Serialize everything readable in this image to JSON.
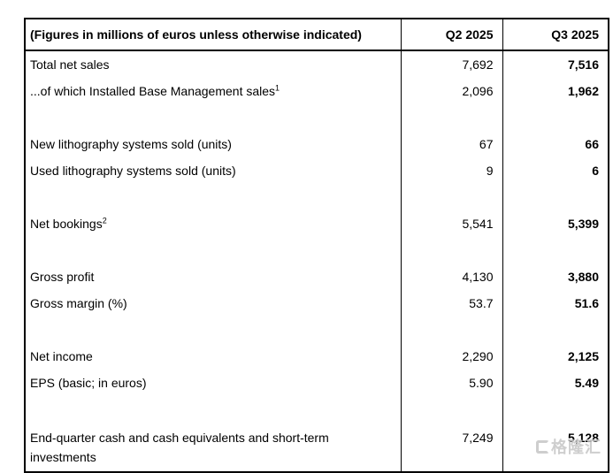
{
  "table": {
    "header": {
      "label": "(Figures in millions of euros unless otherwise indicated)",
      "q2": "Q2 2025",
      "q3": "Q3 2025"
    },
    "rows": [
      {
        "label": "Total net sales",
        "q2": "7,692",
        "q3": "7,516"
      },
      {
        "label": "...of which Installed Base Management sales",
        "sup": "1",
        "q2": "2,096",
        "q3": "1,962"
      },
      {
        "blank": true
      },
      {
        "label": "New lithography systems sold (units)",
        "q2": "67",
        "q3": "66"
      },
      {
        "label": "Used lithography systems sold (units)",
        "q2": "9",
        "q3": "6"
      },
      {
        "blank": true
      },
      {
        "label": "Net bookings",
        "sup": "2",
        "q2": "5,541",
        "q3": "5,399"
      },
      {
        "blank": true
      },
      {
        "label": "Gross profit",
        "q2": "4,130",
        "q3": "3,880"
      },
      {
        "label": "Gross margin (%)",
        "q2": "53.7",
        "q3": "51.6"
      },
      {
        "blank": true
      },
      {
        "label": "Net income",
        "q2": "2,290",
        "q3": "2,125"
      },
      {
        "label": "EPS (basic; in euros)",
        "q2": "5.90",
        "q3": "5.49"
      },
      {
        "blank": true
      },
      {
        "label": "End-quarter cash and cash equivalents and short-term investments",
        "q2": "7,249",
        "q3": "5,128",
        "two_line": true
      }
    ]
  },
  "watermark": {
    "text": "格隆汇",
    "color": "#c6c6c6"
  },
  "colors": {
    "border": "#000000",
    "text": "#000000",
    "background": "#ffffff"
  }
}
